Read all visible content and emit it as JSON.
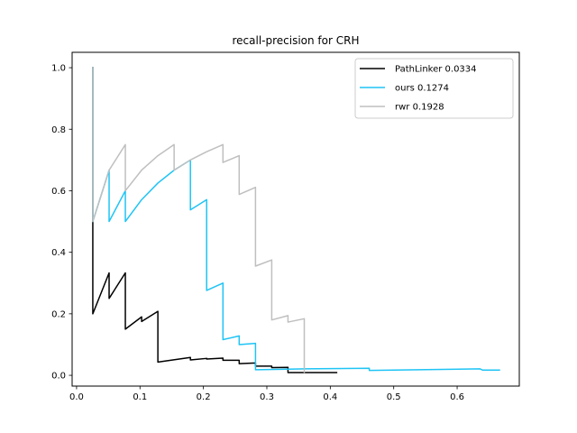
{
  "chart_data": {
    "type": "line",
    "title": "recall-precision for CRH",
    "xlabel": "",
    "ylabel": "",
    "xlim": [
      -0.007,
      0.698
    ],
    "ylim": [
      -0.035,
      1.05
    ],
    "xticks": [
      "0.0",
      "0.1",
      "0.2",
      "0.3",
      "0.4",
      "0.5",
      "0.6"
    ],
    "xtick_values": [
      0.0,
      0.1,
      0.2,
      0.3,
      0.4,
      0.5,
      0.6
    ],
    "yticks": [
      "0.0",
      "0.2",
      "0.4",
      "0.6",
      "0.8",
      "1.0"
    ],
    "ytick_values": [
      0.0,
      0.2,
      0.4,
      0.6,
      0.8,
      1.0
    ],
    "grid": false,
    "legend_position": "top-right",
    "series": [
      {
        "name": "PathLinker 0.0334",
        "color": "#000000",
        "x": [
          0.0256,
          0.0256,
          0.0256,
          0.0513,
          0.0513,
          0.0769,
          0.0769,
          0.1026,
          0.1026,
          0.1282,
          0.1282,
          0.1795,
          0.1795,
          0.2051,
          0.2051,
          0.2308,
          0.2308,
          0.2564,
          0.2564,
          0.2821,
          0.2821,
          0.3077,
          0.3077,
          0.3333,
          0.3333,
          0.41
        ],
        "y": [
          1.0,
          0.5,
          0.2,
          0.333,
          0.25,
          0.333,
          0.15,
          0.19,
          0.175,
          0.208,
          0.043,
          0.058,
          0.05,
          0.055,
          0.053,
          0.056,
          0.049,
          0.049,
          0.038,
          0.04,
          0.03,
          0.03,
          0.025,
          0.026,
          0.009,
          0.009
        ]
      },
      {
        "name": "ours 0.1274",
        "color": "#1ec4f5",
        "x": [
          0.0256,
          0.0256,
          0.0513,
          0.0513,
          0.0769,
          0.0769,
          0.1026,
          0.1282,
          0.1538,
          0.1795,
          0.1795,
          0.2051,
          0.2051,
          0.2308,
          0.2308,
          0.2564,
          0.2564,
          0.2821,
          0.2821,
          0.3333,
          0.36,
          0.4615,
          0.4615,
          0.6362,
          0.64,
          0.6667
        ],
        "y": [
          1.0,
          0.5,
          0.667,
          0.5,
          0.6,
          0.5,
          0.571,
          0.625,
          0.667,
          0.7,
          0.538,
          0.571,
          0.276,
          0.3,
          0.116,
          0.128,
          0.1,
          0.104,
          0.018,
          0.02,
          0.021,
          0.023,
          0.016,
          0.021,
          0.017,
          0.017
        ]
      },
      {
        "name": "rwr 0.1928",
        "color": "#bfbfbf",
        "x": [
          0.0256,
          0.0256,
          0.0513,
          0.0769,
          0.0769,
          0.1026,
          0.1282,
          0.1538,
          0.1538,
          0.1795,
          0.2051,
          0.2308,
          0.2308,
          0.2564,
          0.2564,
          0.2821,
          0.2821,
          0.3077,
          0.3077,
          0.3333,
          0.3333,
          0.359,
          0.359
        ],
        "y": [
          1.0,
          0.5,
          0.667,
          0.75,
          0.6,
          0.667,
          0.714,
          0.75,
          0.667,
          0.7,
          0.727,
          0.75,
          0.692,
          0.714,
          0.588,
          0.611,
          0.355,
          0.375,
          0.18,
          0.194,
          0.173,
          0.184,
          0.01
        ]
      }
    ]
  }
}
